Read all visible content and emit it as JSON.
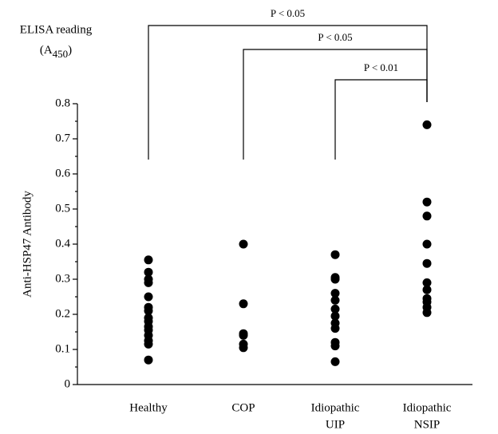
{
  "chart_data": {
    "type": "strip",
    "y_label": "Anti-HSP47 Antibody",
    "y_unit_title": "ELISA reading",
    "y_unit_parts": [
      "(A",
      "450",
      ")"
    ],
    "categories": [
      [
        "Healthy"
      ],
      [
        "COP"
      ],
      [
        "Idiopathic",
        "UIP"
      ],
      [
        "Idiopathic",
        "NSIP"
      ]
    ],
    "groups": [
      [
        0.355,
        0.32,
        0.3,
        0.29,
        0.25,
        0.22,
        0.21,
        0.19,
        0.18,
        0.165,
        0.155,
        0.14,
        0.125,
        0.115,
        0.07
      ],
      [
        0.4,
        0.23,
        0.145,
        0.14,
        0.115,
        0.105
      ],
      [
        0.37,
        0.305,
        0.3,
        0.26,
        0.24,
        0.215,
        0.195,
        0.175,
        0.16,
        0.12,
        0.11,
        0.065
      ],
      [
        0.74,
        0.52,
        0.48,
        0.4,
        0.345,
        0.29,
        0.27,
        0.245,
        0.235,
        0.22,
        0.205
      ]
    ],
    "color": "#000000",
    "ylim": [
      0,
      0.8
    ],
    "yticks": [
      0,
      0.1,
      0.2,
      0.3,
      0.4,
      0.5,
      0.6,
      0.7,
      0.8
    ],
    "comparisons": [
      {
        "from": 0,
        "to": 3,
        "label": "P < 0.05"
      },
      {
        "from": 1,
        "to": 3,
        "label": "P < 0.05"
      },
      {
        "from": 2,
        "to": 3,
        "label": "P < 0.01"
      }
    ]
  }
}
